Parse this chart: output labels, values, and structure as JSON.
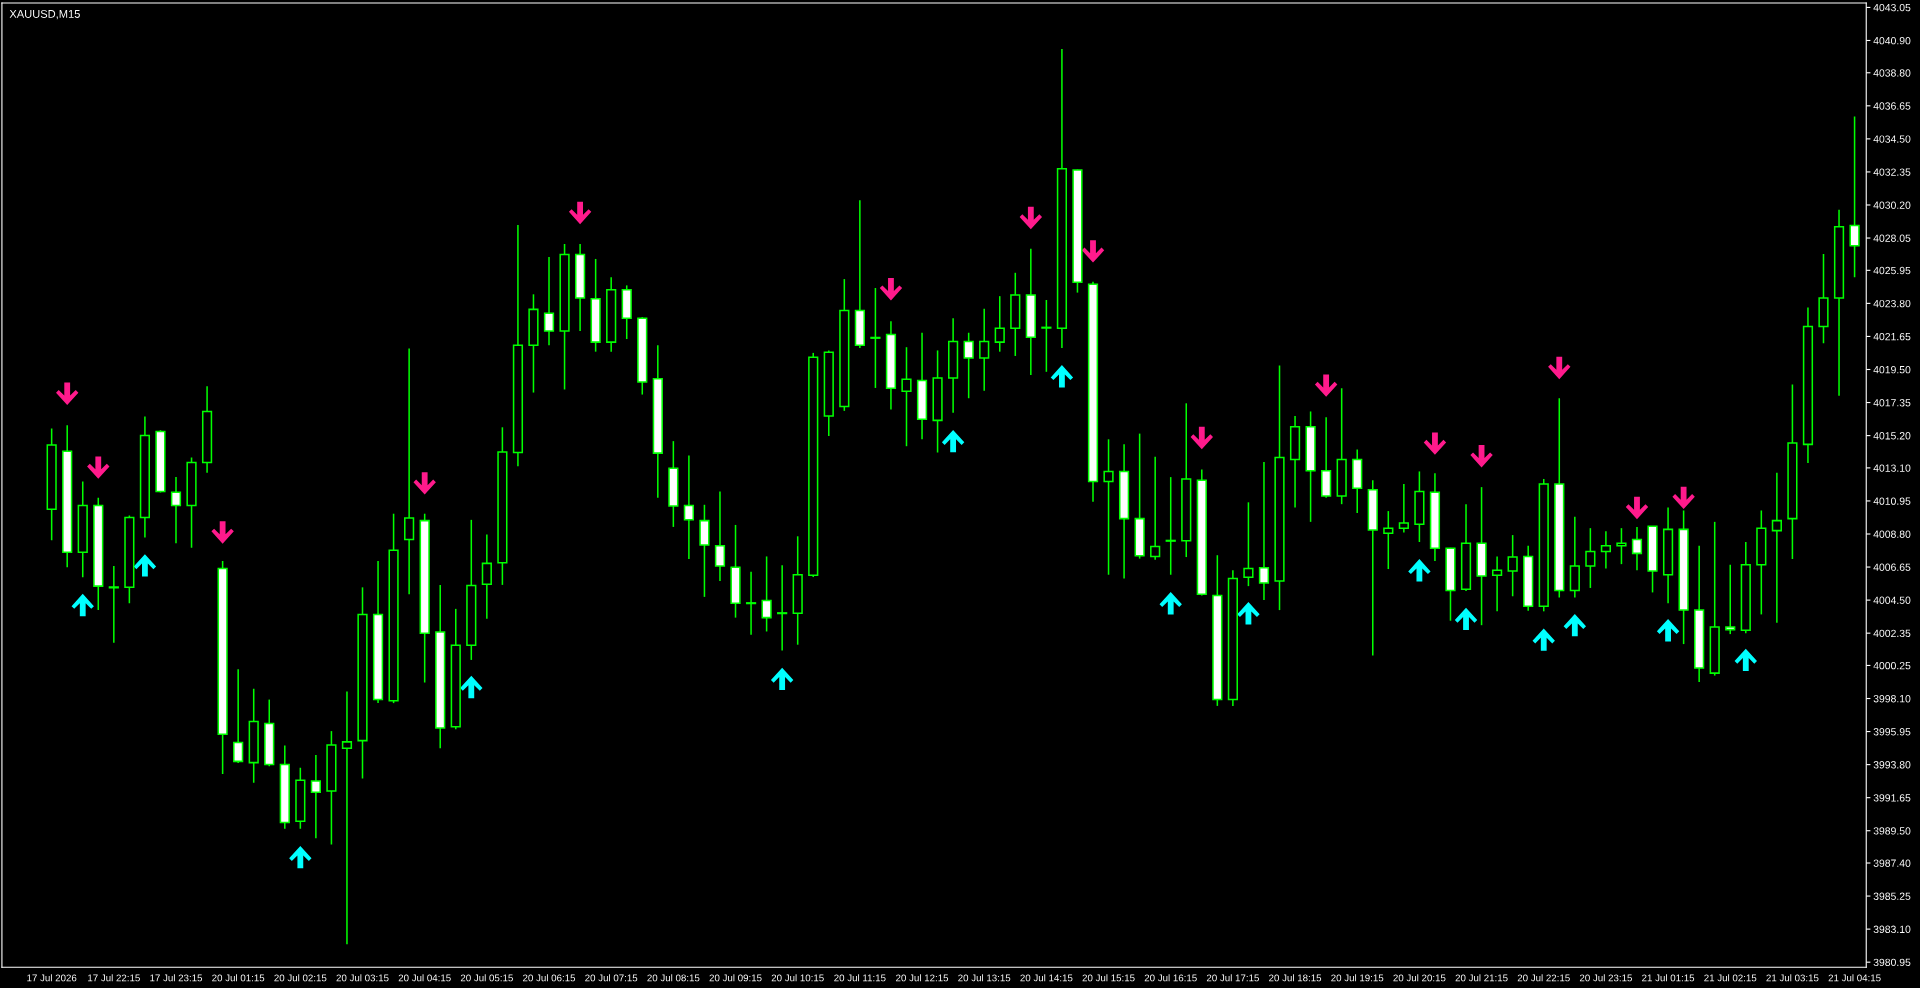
{
  "chart_data": {
    "type": "candlestick",
    "title": "XAUUSD,M15",
    "color": "#00ff00",
    "categories": [
      "17 Jul 2026",
      null,
      null,
      null,
      "17 Jul 22:15",
      null,
      null,
      null,
      "17 Jul 23:15",
      null,
      null,
      null,
      "20 Jul 01:15",
      null,
      null,
      null,
      "20 Jul 02:15",
      null,
      null,
      null,
      "20 Jul 03:15",
      null,
      null,
      null,
      "20 Jul 04:15",
      null,
      null,
      null,
      "20 Jul 05:15",
      null,
      null,
      null,
      "20 Jul 06:15",
      null,
      null,
      null,
      "20 Jul 07:15",
      null,
      null,
      null,
      "20 Jul 08:15",
      null,
      null,
      null,
      "20 Jul 09:15",
      null,
      null,
      null,
      "20 Jul 10:15",
      null,
      null,
      null,
      "20 Jul 11:15",
      null,
      null,
      null,
      "20 Jul 12:15",
      null,
      null,
      null,
      "20 Jul 13:15",
      null,
      null,
      null,
      "20 Jul 14:15",
      null,
      null,
      null,
      "20 Jul 15:15",
      null,
      null,
      null,
      "20 Jul 16:15",
      null,
      null,
      null,
      "20 Jul 17:15",
      null,
      null,
      null,
      "20 Jul 18:15",
      null,
      null,
      null,
      "20 Jul 19:15",
      null,
      null,
      null,
      "20 Jul 20:15",
      null,
      null,
      null,
      "20 Jul 21:15",
      null,
      null,
      null,
      "20 Jul 22:15",
      null,
      null,
      null,
      "20 Jul 23:15",
      null,
      null,
      null,
      "21 Jul 01:15",
      null,
      null,
      null,
      "21 Jul 02:15",
      null,
      null,
      null,
      "21 Jul 03:15",
      null,
      null,
      null,
      "21 Jul 04:15"
    ],
    "ohlc": [
      [
        4010.41,
        4015.66,
        4008.4,
        4014.59
      ],
      [
        4014.18,
        4015.87,
        4006.64,
        4007.62
      ],
      [
        4007.62,
        4012.22,
        4005.98,
        4010.66
      ],
      [
        4010.66,
        4011.15,
        4003.85,
        4005.41
      ],
      [
        4005.3,
        4006.72,
        4001.72,
        4005.35
      ],
      [
        4005.33,
        4010.0,
        4004.3,
        4009.88
      ],
      [
        4009.88,
        4016.44,
        4008.57,
        4015.21
      ],
      [
        4015.46,
        4015.54,
        4011.5,
        4011.56
      ],
      [
        4011.52,
        4012.5,
        4008.2,
        4010.66
      ],
      [
        4010.66,
        4013.77,
        4007.91,
        4013.45
      ],
      [
        4013.45,
        4018.41,
        4012.79,
        4016.77
      ],
      [
        4006.56,
        4007.05,
        3993.19,
        3995.78
      ],
      [
        3995.24,
        4000.0,
        3993.9,
        3994.01
      ],
      [
        3993.93,
        3998.73,
        3992.62,
        3996.6
      ],
      [
        3996.47,
        3998.03,
        3993.7,
        3993.81
      ],
      [
        3993.81,
        3995.04,
        3989.63,
        3990.04
      ],
      [
        3990.12,
        3993.6,
        3989.63,
        3992.78
      ],
      [
        3992.74,
        3994.42,
        3989.01,
        3992.0
      ],
      [
        3992.08,
        3995.98,
        3988.6,
        3995.08
      ],
      [
        3994.87,
        3998.56,
        3982.12,
        3995.28
      ],
      [
        3995.36,
        4005.33,
        3992.9,
        4003.56
      ],
      [
        4003.56,
        4007.05,
        3997.8,
        3998.03
      ],
      [
        3997.95,
        4010.12,
        3997.8,
        4007.75
      ],
      [
        4008.44,
        4020.87,
        4004.88,
        4009.84
      ],
      [
        4009.67,
        4010.12,
        3999.14,
        4002.34
      ],
      [
        4002.42,
        4005.49,
        3994.87,
        3996.18
      ],
      [
        3996.27,
        4003.93,
        3996.1,
        4001.56
      ],
      [
        4001.56,
        4009.72,
        4000.61,
        4005.45
      ],
      [
        4005.53,
        4008.77,
        4003.28,
        4006.89
      ],
      [
        4006.93,
        4015.74,
        4005.49,
        4014.14
      ],
      [
        4014.1,
        4028.9,
        4013.2,
        4021.07
      ],
      [
        4021.07,
        4024.39,
        4018.0,
        4023.41
      ],
      [
        4023.16,
        4026.81,
        4021.07,
        4022.0
      ],
      [
        4022.0,
        4027.67,
        4018.2,
        4026.98
      ],
      [
        4026.98,
        4027.67,
        4022.0,
        4024.15
      ],
      [
        4024.1,
        4026.69,
        4020.66,
        4021.28
      ],
      [
        4021.28,
        4025.5,
        4020.66,
        4024.68
      ],
      [
        4024.68,
        4024.97,
        4021.48,
        4022.84
      ],
      [
        4022.84,
        4022.9,
        4017.87,
        4018.69
      ],
      [
        4018.9,
        4021.07,
        4011.15,
        4014.06
      ],
      [
        4013.08,
        4014.84,
        4009.26,
        4010.62
      ],
      [
        4010.66,
        4013.9,
        4007.17,
        4009.72
      ],
      [
        4009.67,
        4010.7,
        4004.71,
        4008.08
      ],
      [
        4008.03,
        4011.56,
        4005.74,
        4006.72
      ],
      [
        4006.64,
        4009.39,
        4003.36,
        4004.3
      ],
      [
        4004.32,
        4006.35,
        4002.25,
        4004.28
      ],
      [
        4004.47,
        4007.34,
        4002.46,
        4003.36
      ],
      [
        4003.63,
        4006.76,
        4001.23,
        4003.67
      ],
      [
        4003.65,
        4008.65,
        4001.6,
        4006.15
      ],
      [
        4006.11,
        4020.58,
        4006.0,
        4020.29
      ],
      [
        4016.48,
        4020.74,
        4015.17,
        4020.62
      ],
      [
        4017.1,
        4025.38,
        4016.81,
        4023.33
      ],
      [
        4023.33,
        4030.5,
        4020.9,
        4021.07
      ],
      [
        4021.58,
        4024.8,
        4018.3,
        4021.54
      ],
      [
        4021.77,
        4022.63,
        4016.89,
        4018.28
      ],
      [
        4018.08,
        4020.95,
        4014.51,
        4018.86
      ],
      [
        4018.78,
        4021.89,
        4014.96,
        4016.27
      ],
      [
        4016.19,
        4020.74,
        4014.1,
        4018.94
      ],
      [
        4018.94,
        4022.84,
        4016.68,
        4021.32
      ],
      [
        4021.32,
        4021.89,
        4017.63,
        4020.25
      ],
      [
        4020.25,
        4023.45,
        4018.12,
        4021.32
      ],
      [
        4021.28,
        4024.27,
        4020.66,
        4022.18
      ],
      [
        4022.18,
        4025.79,
        4020.38,
        4024.35
      ],
      [
        4024.35,
        4027.35,
        4019.14,
        4021.6
      ],
      [
        4022.24,
        4024.02,
        4019.35,
        4022.2
      ],
      [
        4022.18,
        4040.34,
        4020.9,
        4032.55
      ],
      [
        4032.47,
        4032.5,
        4024.5,
        4025.17
      ],
      [
        4025.05,
        4025.21,
        4010.9,
        4012.22
      ],
      [
        4012.22,
        4014.96,
        4006.15,
        4012.87
      ],
      [
        4012.87,
        4014.63,
        4005.9,
        4009.8
      ],
      [
        4009.8,
        4015.33,
        4007.2,
        4007.38
      ],
      [
        4007.34,
        4013.82,
        4007.13,
        4007.99
      ],
      [
        4008.34,
        4012.5,
        4006.15,
        4008.38
      ],
      [
        4008.36,
        4017.3,
        4007.3,
        4012.38
      ],
      [
        4012.3,
        4012.99,
        4004.8,
        4004.88
      ],
      [
        4004.8,
        4007.42,
        3997.62,
        3998.03
      ],
      [
        3998.03,
        4006.44,
        3997.62,
        4005.9
      ],
      [
        4005.98,
        4010.86,
        4005.41,
        4006.56
      ],
      [
        4006.6,
        4013.49,
        4004.51,
        4005.62
      ],
      [
        4005.74,
        4019.76,
        4003.85,
        4013.77
      ],
      [
        4013.65,
        4016.48,
        4010.53,
        4015.78
      ],
      [
        4015.78,
        4016.77,
        4009.59,
        4012.91
      ],
      [
        4012.91,
        4016.4,
        4011.15,
        4011.27
      ],
      [
        4011.27,
        4018.28,
        4010.74,
        4013.65
      ],
      [
        4013.65,
        4014.3,
        4010.17,
        4011.77
      ],
      [
        4011.68,
        4012.3,
        4000.9,
        4009.06
      ],
      [
        4008.85,
        4010.29,
        4006.52,
        4009.18
      ],
      [
        4009.18,
        4012.05,
        4008.9,
        4009.51
      ],
      [
        4009.43,
        4012.87,
        4008.28,
        4011.56
      ],
      [
        4011.52,
        4012.75,
        4007.05,
        4007.87
      ],
      [
        4007.87,
        4007.9,
        4003.16,
        4005.12
      ],
      [
        4005.21,
        4010.74,
        4005.1,
        4008.2
      ],
      [
        4008.2,
        4011.85,
        4002.87,
        4006.07
      ],
      [
        4006.11,
        4007.34,
        4003.77,
        4006.44
      ],
      [
        4006.39,
        4008.73,
        4004.75,
        4007.3
      ],
      [
        4007.34,
        4008.03,
        4003.8,
        4004.1
      ],
      [
        4004.1,
        4012.38,
        4003.77,
        4012.05
      ],
      [
        4012.05,
        4017.63,
        4004.67,
        4005.12
      ],
      [
        4005.12,
        4009.92,
        4004.67,
        4006.72
      ],
      [
        4006.72,
        4009.18,
        4005.29,
        4007.66
      ],
      [
        4007.66,
        4008.98,
        4006.56,
        4008.03
      ],
      [
        4008.03,
        4009.18,
        4006.84,
        4008.2
      ],
      [
        4008.44,
        4009.26,
        4006.44,
        4007.54
      ],
      [
        4009.3,
        4009.3,
        4005.0,
        4006.39
      ],
      [
        4006.15,
        4010.53,
        4004.3,
        4009.1
      ],
      [
        4009.1,
        4010.33,
        4001.64,
        4003.85
      ],
      [
        4003.85,
        4008.03,
        3999.18,
        4000.08
      ],
      [
        3999.75,
        4009.59,
        3999.59,
        4002.75
      ],
      [
        4002.75,
        4006.8,
        4002.29,
        4002.58
      ],
      [
        4002.54,
        4008.28,
        4002.34,
        4006.8
      ],
      [
        4006.8,
        4010.33,
        4003.57,
        4009.18
      ],
      [
        4009.02,
        4012.79,
        4003.03,
        4009.67
      ],
      [
        4009.8,
        4018.53,
        4007.17,
        4014.72
      ],
      [
        4014.63,
        4023.53,
        4013.41,
        4022.3
      ],
      [
        4022.3,
        4027.02,
        4021.2,
        4024.15
      ],
      [
        4024.15,
        4029.89,
        4017.79,
        4028.78
      ],
      [
        4028.86,
        4035.96,
        4025.5,
        4027.55
      ]
    ],
    "colors": [
      "#000000",
      "#ffffff",
      "#000000",
      "#ffffff",
      "#000000",
      "#000000",
      "#000000",
      "#ffffff",
      "#ffffff",
      "#000000",
      "#000000",
      "#ffffff",
      "#ffffff",
      "#000000",
      "#ffffff",
      "#ffffff",
      "#000000",
      "#ffffff",
      "#000000",
      "#000000",
      "#000000",
      "#ffffff",
      "#000000",
      "#000000",
      "#ffffff",
      "#ffffff",
      "#000000",
      "#000000",
      "#000000",
      "#000000",
      "#000000",
      "#000000",
      "#ffffff",
      "#000000",
      "#ffffff",
      "#ffffff",
      "#000000",
      "#ffffff",
      "#ffffff",
      "#ffffff",
      "#ffffff",
      "#ffffff",
      "#ffffff",
      "#ffffff",
      "#ffffff",
      "#ffffff",
      "#ffffff",
      "#000000",
      "#000000",
      "#000000",
      "#000000",
      "#000000",
      "#ffffff",
      "#ffffff",
      "#ffffff",
      "#000000",
      "#ffffff",
      "#000000",
      "#000000",
      "#ffffff",
      "#000000",
      "#000000",
      "#000000",
      "#ffffff",
      "#ffffff",
      "#000000",
      "#ffffff",
      "#ffffff",
      "#000000",
      "#ffffff",
      "#ffffff",
      "#000000",
      "#000000",
      "#000000",
      "#ffffff",
      "#ffffff",
      "#000000",
      "#000000",
      "#ffffff",
      "#000000",
      "#000000",
      "#ffffff",
      "#ffffff",
      "#000000",
      "#ffffff",
      "#ffffff",
      "#000000",
      "#000000",
      "#000000",
      "#ffffff",
      "#ffffff",
      "#000000",
      "#ffffff",
      "#000000",
      "#000000",
      "#ffffff",
      "#000000",
      "#ffffff",
      "#000000",
      "#000000",
      "#000000",
      "#000000",
      "#ffffff",
      "#ffffff",
      "#000000",
      "#ffffff",
      "#ffffff",
      "#000000",
      "#ffffff",
      "#000000",
      "#000000",
      "#000000",
      "#000000",
      "#000000",
      "#000000",
      "#000000",
      "#ffffff"
    ],
    "series": [
      {
        "type": "scatter",
        "color": "#ff1a8c",
        "values": [
          null,
          4017.92,
          null,
          4013.12,
          null,
          null,
          null,
          null,
          null,
          null,
          null,
          4008.9,
          null,
          null,
          null,
          null,
          null,
          null,
          null,
          null,
          null,
          null,
          null,
          null,
          4012.09,
          null,
          null,
          null,
          null,
          null,
          null,
          null,
          null,
          null,
          4029.68,
          null,
          null,
          null,
          null,
          null,
          null,
          null,
          null,
          null,
          null,
          null,
          null,
          null,
          null,
          null,
          null,
          null,
          null,
          null,
          4024.72,
          null,
          null,
          null,
          null,
          null,
          null,
          null,
          null,
          4029.35,
          null,
          null,
          null,
          4027.18,
          null,
          null,
          null,
          null,
          null,
          null,
          4015.04,
          null,
          null,
          null,
          null,
          null,
          null,
          null,
          4018.45,
          null,
          null,
          null,
          null,
          null,
          null,
          4014.68,
          null,
          null,
          4013.86,
          null,
          null,
          null,
          null,
          4019.6,
          null,
          null,
          null,
          null,
          4010.49,
          null,
          null,
          4011.15,
          null,
          null,
          null,
          null,
          null,
          null,
          null,
          null,
          null,
          null,
          null
        ]
      },
      {
        "type": "scatter",
        "color": "#00ffff",
        "values": [
          null,
          null,
          4004.18,
          null,
          null,
          null,
          4006.76,
          null,
          null,
          null,
          null,
          null,
          null,
          null,
          null,
          null,
          3987.78,
          null,
          null,
          null,
          null,
          null,
          null,
          null,
          null,
          null,
          null,
          3998.85,
          null,
          null,
          null,
          null,
          null,
          null,
          null,
          null,
          null,
          null,
          null,
          null,
          null,
          null,
          null,
          null,
          null,
          null,
          null,
          3999.38,
          null,
          null,
          null,
          null,
          null,
          null,
          null,
          null,
          null,
          null,
          4014.84,
          null,
          null,
          null,
          null,
          null,
          null,
          4019.06,
          null,
          null,
          null,
          null,
          null,
          null,
          4004.3,
          null,
          null,
          null,
          null,
          4003.65,
          null,
          null,
          null,
          null,
          null,
          null,
          null,
          null,
          null,
          null,
          4006.44,
          null,
          null,
          4003.28,
          null,
          null,
          null,
          null,
          4001.93,
          null,
          4002.87,
          null,
          null,
          null,
          null,
          null,
          4002.54,
          null,
          null,
          null,
          null,
          4000.61,
          null,
          null,
          null,
          null,
          null,
          null,
          null
        ]
      }
    ],
    "ylim": [
      3980.62,
      4043.34
    ],
    "yticks": [
      4043.05,
      {
        "value": 4040.9,
        "label": "4040.90"
      },
      {
        "value": 4038.8,
        "label": "4038.80"
      },
      4036.65,
      {
        "value": 4034.5,
        "label": "4034.50"
      },
      4032.35,
      {
        "value": 4030.2,
        "label": "4030.20"
      },
      4028.05,
      4025.95,
      {
        "value": 4023.8,
        "label": "4023.80"
      },
      4021.65,
      {
        "value": 4019.5,
        "label": "4019.50"
      },
      4017.35,
      {
        "value": 4015.2,
        "label": "4015.20"
      },
      {
        "value": 4013.1,
        "label": "4013.10"
      },
      4010.95,
      {
        "value": 4008.8,
        "label": "4008.80"
      },
      4006.65,
      {
        "value": 4004.5,
        "label": "4004.50"
      },
      4002.35,
      4000.25,
      {
        "value": 3998.1,
        "label": "3998.10"
      },
      3995.95,
      {
        "value": 3993.8,
        "label": "3993.80"
      },
      3991.65,
      {
        "value": 3989.5,
        "label": "3989.50"
      },
      {
        "value": 3987.4,
        "label": "3987.40"
      },
      3985.25,
      {
        "value": 3983.1,
        "label": "3983.10"
      },
      3980.95
    ]
  }
}
